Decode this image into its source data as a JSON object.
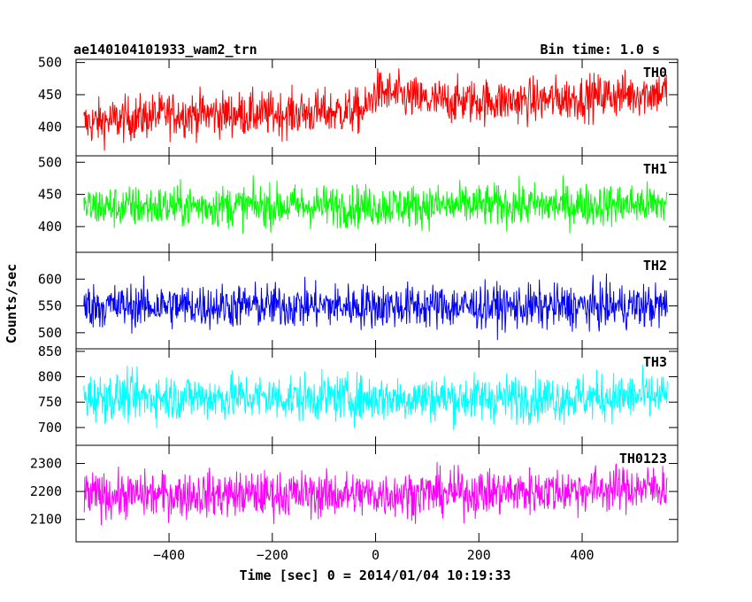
{
  "chart_data": {
    "type": "line",
    "title": "ae140104101933_wam2_trn",
    "subtitle": "Bin time: 1.0 s",
    "xlabel": "Time [sec] 0 = 2014/01/04 10:19:33",
    "ylabel": "Counts/sec",
    "xlim": [
      -580,
      585
    ],
    "x_ticks": [
      -400,
      -200,
      0,
      200,
      400
    ],
    "x_tick_labels": [
      "−400",
      "−200",
      "0",
      "200",
      "400"
    ],
    "data_range": [
      -565,
      565
    ],
    "bin_time": 1.0,
    "grid": false,
    "series": [
      {
        "name": "TH0",
        "color": "#ff0000",
        "ylim": [
          355,
          505
        ],
        "yticks": [
          400,
          450,
          500
        ],
        "mean_start": 420,
        "mean_mid": 440,
        "mean_end": 445,
        "amplitude": 32,
        "points": [
          [
            -565,
            405
          ],
          [
            -400,
            420
          ],
          [
            -200,
            420
          ],
          [
            -20,
            425
          ],
          [
            0,
            455
          ],
          [
            100,
            440
          ],
          [
            300,
            440
          ],
          [
            565,
            455
          ]
        ]
      },
      {
        "name": "TH1",
        "color": "#00ff00",
        "ylim": [
          360,
          510
        ],
        "yticks": [
          400,
          450,
          500
        ],
        "mean_start": 432,
        "mean_mid": 432,
        "mean_end": 434,
        "amplitude": 30,
        "points": [
          [
            -565,
            430
          ],
          [
            -300,
            432
          ],
          [
            0,
            432
          ],
          [
            300,
            433
          ],
          [
            565,
            435
          ]
        ]
      },
      {
        "name": "TH2",
        "color": "#0000ff",
        "ylim": [
          470,
          650
        ],
        "yticks": [
          500,
          550,
          600
        ],
        "mean_start": 550,
        "mean_mid": 550,
        "mean_end": 550,
        "amplitude": 38,
        "points": [
          [
            -565,
            550
          ],
          [
            -300,
            550
          ],
          [
            0,
            550
          ],
          [
            300,
            548
          ],
          [
            565,
            550
          ]
        ]
      },
      {
        "name": "TH3",
        "color": "#00ffff",
        "ylim": [
          665,
          855
        ],
        "yticks": [
          700,
          750,
          800,
          850
        ],
        "mean_start": 760,
        "mean_mid": 758,
        "mean_end": 762,
        "amplitude": 42,
        "points": [
          [
            -565,
            760
          ],
          [
            -300,
            760
          ],
          [
            0,
            758
          ],
          [
            300,
            758
          ],
          [
            565,
            762
          ]
        ]
      },
      {
        "name": "TH0123",
        "color": "#ff00ff",
        "ylim": [
          2020,
          2365
        ],
        "yticks": [
          2100,
          2200,
          2300
        ],
        "mean_start": 2185,
        "mean_mid": 2190,
        "mean_end": 2210,
        "amplitude": 75,
        "points": [
          [
            -565,
            2185
          ],
          [
            -300,
            2190
          ],
          [
            0,
            2190
          ],
          [
            300,
            2200
          ],
          [
            565,
            2215
          ]
        ]
      }
    ]
  }
}
